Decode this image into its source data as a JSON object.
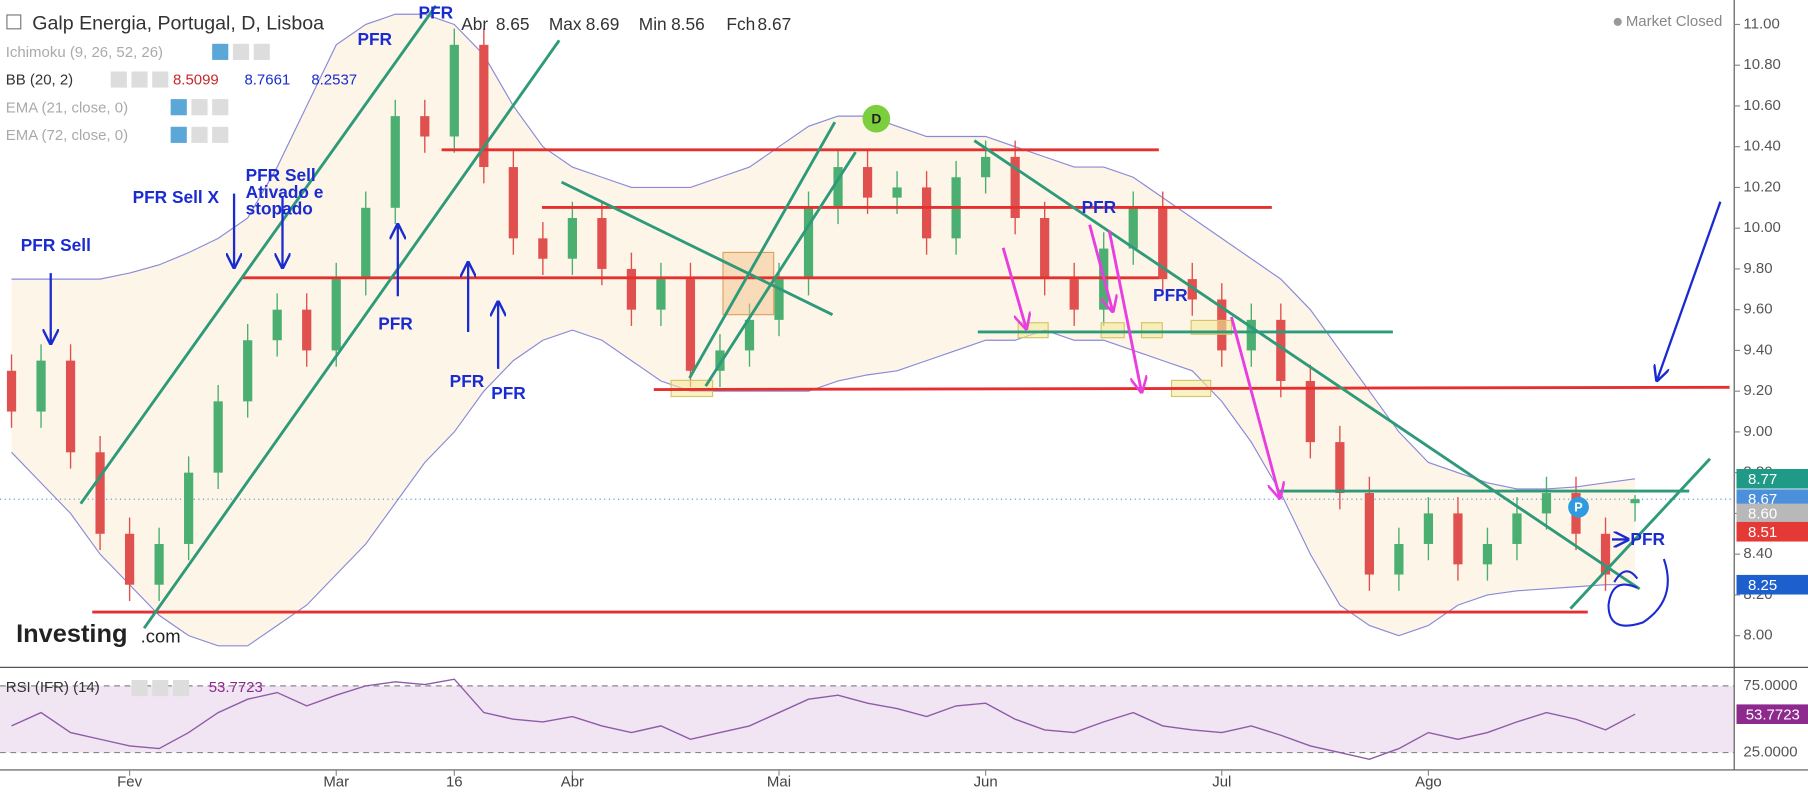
{
  "header": {
    "title": "Galp Energia, Portugal, D, Lisboa",
    "ohlc": [
      {
        "label": "Abr",
        "value": 8.65
      },
      {
        "label": "Max",
        "value": 8.69
      },
      {
        "label": "Min",
        "value": 8.56
      },
      {
        "label": "Fch",
        "value": 8.67
      }
    ],
    "indicators": [
      {
        "name": "Ichimoku (9, 26, 52, 26)"
      },
      {
        "name": "BB (20, 2)",
        "values": [
          8.5099,
          8.7661,
          8.2537
        ]
      },
      {
        "name": "EMA (21, close, 0)"
      },
      {
        "name": "EMA (72, close, 0)"
      }
    ],
    "status": "Market Closed",
    "logo": "Investing",
    "logo_suffix": ".com"
  },
  "chart_data": [
    {
      "type": "candlestick",
      "categories": [
        null,
        null,
        null,
        null,
        "Fev",
        null,
        null,
        null,
        null,
        null,
        null,
        "Mar",
        null,
        null,
        null,
        "16",
        null,
        null,
        null,
        "Abr",
        null,
        null,
        null,
        null,
        null,
        null,
        "Mai",
        null,
        null,
        null,
        null,
        null,
        null,
        "Jun",
        null,
        null,
        null,
        null,
        null,
        null,
        null,
        "Jul",
        null,
        null,
        null,
        null,
        null,
        null,
        "Ago",
        null,
        null,
        null,
        null,
        null,
        null,
        null
      ],
      "open": [
        9.3,
        9.1,
        9.35,
        8.9,
        8.5,
        8.25,
        8.45,
        8.8,
        9.15,
        9.45,
        9.6,
        9.4,
        9.75,
        10.1,
        10.55,
        10.45,
        10.9,
        10.3,
        9.95,
        9.85,
        10.05,
        9.8,
        9.6,
        9.75,
        9.3,
        9.4,
        9.55,
        9.75,
        10.1,
        10.3,
        10.15,
        10.2,
        9.95,
        10.25,
        10.35,
        10.05,
        9.75,
        9.6,
        9.9,
        10.1,
        9.75,
        9.65,
        9.4,
        9.55,
        9.25,
        8.95,
        8.7,
        8.3,
        8.45,
        8.6,
        8.35,
        8.45,
        8.6,
        8.7,
        8.5,
        8.65
      ],
      "high": [
        9.38,
        9.43,
        9.43,
        8.98,
        8.58,
        8.53,
        8.88,
        9.23,
        9.53,
        9.68,
        9.68,
        9.83,
        10.18,
        10.63,
        10.63,
        10.98,
        10.98,
        10.38,
        10.03,
        10.13,
        10.13,
        9.88,
        9.83,
        9.83,
        9.48,
        9.63,
        9.83,
        10.18,
        10.38,
        10.38,
        10.28,
        10.28,
        10.33,
        10.43,
        10.43,
        10.13,
        9.83,
        9.98,
        10.18,
        10.18,
        9.83,
        9.73,
        9.63,
        9.63,
        9.33,
        9.03,
        8.78,
        8.53,
        8.68,
        8.68,
        8.53,
        8.68,
        8.78,
        8.78,
        8.58,
        8.69
      ],
      "low": [
        9.02,
        9.02,
        8.82,
        8.42,
        8.17,
        8.17,
        8.37,
        8.72,
        9.07,
        9.37,
        9.32,
        9.32,
        9.67,
        10.02,
        10.37,
        10.37,
        10.22,
        9.87,
        9.77,
        9.77,
        9.72,
        9.52,
        9.52,
        9.22,
        9.22,
        9.32,
        9.47,
        9.67,
        10.02,
        10.07,
        10.07,
        9.87,
        9.87,
        10.17,
        9.97,
        9.67,
        9.52,
        9.52,
        9.82,
        9.67,
        9.57,
        9.32,
        9.32,
        9.17,
        8.87,
        8.62,
        8.22,
        8.22,
        8.37,
        8.27,
        8.27,
        8.37,
        8.52,
        8.42,
        8.22,
        8.56
      ],
      "close": [
        9.1,
        9.35,
        8.9,
        8.5,
        8.25,
        8.45,
        8.8,
        9.15,
        9.45,
        9.6,
        9.4,
        9.75,
        10.1,
        10.55,
        10.45,
        10.9,
        10.3,
        9.95,
        9.85,
        10.05,
        9.8,
        9.6,
        9.75,
        9.3,
        9.4,
        9.55,
        9.75,
        10.1,
        10.3,
        10.15,
        10.2,
        9.95,
        10.25,
        10.35,
        10.05,
        9.75,
        9.6,
        9.9,
        10.1,
        9.75,
        9.65,
        9.4,
        9.55,
        9.25,
        8.95,
        8.7,
        8.3,
        8.45,
        8.6,
        8.35,
        8.45,
        8.6,
        8.7,
        8.5,
        8.3,
        8.67
      ],
      "up_color": "#4caf72",
      "down_color": "#e0504e",
      "series": [
        {
          "name": "BB upper",
          "color": "#8a8ad8",
          "values": [
            9.75,
            9.75,
            9.75,
            9.75,
            9.78,
            9.82,
            9.88,
            9.95,
            10.05,
            10.3,
            10.6,
            10.9,
            11.0,
            11.05,
            11.05,
            11.0,
            10.85,
            10.6,
            10.4,
            10.3,
            10.25,
            10.2,
            10.2,
            10.2,
            10.25,
            10.3,
            10.4,
            10.5,
            10.55,
            10.55,
            10.5,
            10.45,
            10.45,
            10.45,
            10.4,
            10.35,
            10.3,
            10.3,
            10.25,
            10.15,
            10.05,
            9.95,
            9.85,
            9.75,
            9.6,
            9.4,
            9.2,
            9.0,
            8.85,
            8.8,
            8.75,
            8.72,
            8.72,
            8.73,
            8.75,
            8.77
          ]
        },
        {
          "name": "BB lower",
          "color": "#8a8ad8",
          "values": [
            8.9,
            8.75,
            8.6,
            8.4,
            8.25,
            8.1,
            8.0,
            7.95,
            7.95,
            8.05,
            8.15,
            8.3,
            8.45,
            8.65,
            8.85,
            9.0,
            9.2,
            9.35,
            9.45,
            9.5,
            9.45,
            9.35,
            9.25,
            9.2,
            9.2,
            9.2,
            9.2,
            9.2,
            9.25,
            9.28,
            9.3,
            9.35,
            9.4,
            9.45,
            9.45,
            9.5,
            9.45,
            9.45,
            9.4,
            9.35,
            9.3,
            9.15,
            8.95,
            8.7,
            8.4,
            8.15,
            8.05,
            8.0,
            8.05,
            8.15,
            8.2,
            8.22,
            8.23,
            8.24,
            8.25,
            8.25
          ]
        }
      ],
      "ylim": [
        7.85,
        11.12
      ],
      "yticks": [
        {
          "value": 8,
          "label": "8.00"
        },
        {
          "value": 8.2,
          "label": "8.20"
        },
        {
          "value": 8.4,
          "label": "8.40"
        },
        {
          "value": 8.6,
          "label": "8.60"
        },
        {
          "value": 8.8,
          "label": "8.80"
        },
        {
          "value": 9,
          "label": "9.00"
        },
        {
          "value": 9.2,
          "label": "9.20"
        },
        {
          "value": 9.4,
          "label": "9.40"
        },
        {
          "value": 9.6,
          "label": "9.60"
        },
        {
          "value": 9.8,
          "label": "9.80"
        },
        {
          "value": 10,
          "label": "10.00"
        },
        {
          "value": 10.2,
          "label": "10.20"
        },
        {
          "value": 10.4,
          "label": "10.40"
        },
        {
          "value": 10.6,
          "label": "10.60"
        },
        {
          "value": 10.8,
          "label": "10.80"
        },
        {
          "value": 11,
          "label": "11.00"
        }
      ],
      "price_labels": [
        {
          "value": 8.77,
          "label": "8.77",
          "color": "#1e9a86"
        },
        {
          "value": 8.67,
          "label": "8.67",
          "color": "#4c8fdb"
        },
        {
          "value": 8.6,
          "label": "8.60",
          "color": "#b8b8b8"
        },
        {
          "value": 8.51,
          "label": "8.51",
          "color": "#e53935"
        },
        {
          "value": 8.25,
          "label": "8.25",
          "color": "#1e5fce"
        }
      ],
      "annotations": [
        "PFR Sell",
        "PFR Sell X",
        "PFR Sell",
        "Ativado e",
        "stopado",
        "PFR",
        "PFR",
        "PFR",
        "PFR",
        "PFR",
        "PFR",
        "PFR",
        "PFR",
        "D",
        "P"
      ]
    },
    {
      "type": "line",
      "title": "RSI (IFR) (14)",
      "color": "#8e5ba8",
      "values": [
        45,
        55,
        40,
        35,
        30,
        28,
        40,
        55,
        65,
        70,
        60,
        68,
        75,
        78,
        76,
        80,
        55,
        50,
        48,
        52,
        45,
        40,
        45,
        35,
        40,
        45,
        55,
        65,
        68,
        62,
        58,
        52,
        60,
        62,
        50,
        42,
        40,
        48,
        55,
        45,
        42,
        40,
        45,
        38,
        30,
        25,
        20,
        28,
        40,
        35,
        40,
        48,
        55,
        50,
        42,
        53.7723
      ],
      "value": 53.7723,
      "ylim": [
        12,
        88
      ],
      "yticks": [
        {
          "value": 75,
          "label": "75.0000"
        },
        {
          "value": 25,
          "label": "25.0000"
        }
      ]
    }
  ]
}
